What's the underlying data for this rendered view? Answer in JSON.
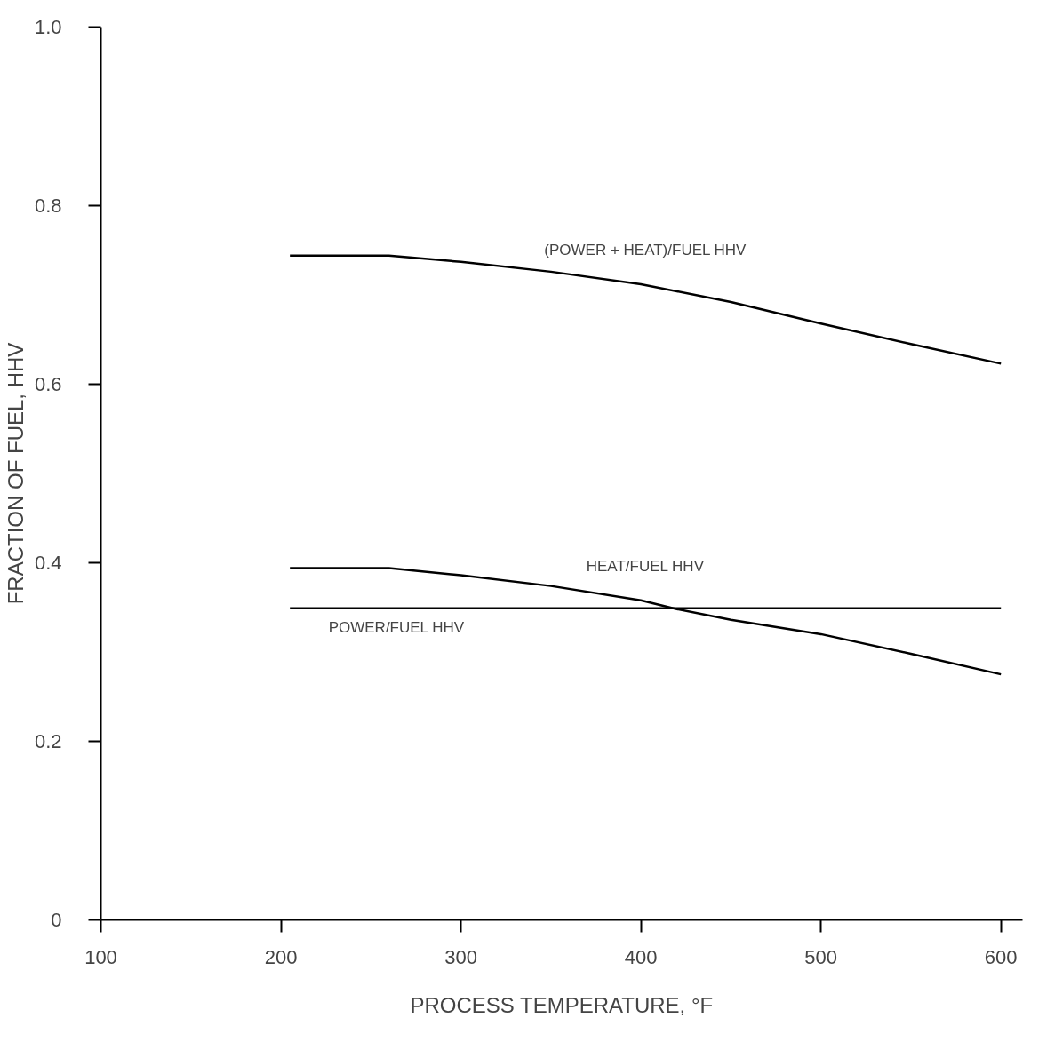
{
  "chart_data": {
    "type": "line",
    "xlabel": "PROCESS TEMPERATURE, °F",
    "ylabel": "FRACTION OF FUEL, HHV",
    "xlim": [
      100,
      612
    ],
    "ylim": [
      0,
      1.0
    ],
    "xticks": [
      100,
      200,
      300,
      400,
      500,
      600
    ],
    "yticks": [
      0,
      0.2,
      0.4,
      0.6,
      0.8,
      {
        "value": 1,
        "label": "1.0"
      }
    ],
    "grid": false,
    "marker": "none",
    "line_style": "solid",
    "series": [
      {
        "name": "(POWER + HEAT)/FUEL HHV",
        "color": "#000000",
        "x": [
          205,
          260,
          300,
          350,
          400,
          450,
          500,
          550,
          600
        ],
        "values": [
          0.744,
          0.744,
          0.737,
          0.726,
          0.712,
          0.692,
          0.668,
          0.645,
          0.623
        ]
      },
      {
        "name": "HEAT/FUEL HHV",
        "color": "#000000",
        "x": [
          205,
          260,
          300,
          350,
          400,
          420,
          450,
          500,
          550,
          600
        ],
        "values": [
          0.394,
          0.394,
          0.386,
          0.374,
          0.358,
          0.348,
          0.336,
          0.32,
          0.298,
          0.275
        ]
      },
      {
        "name": "POWER/FUEL HHV",
        "color": "#000000",
        "x": [
          205,
          600
        ],
        "values": [
          0.349,
          0.349
        ]
      }
    ]
  }
}
